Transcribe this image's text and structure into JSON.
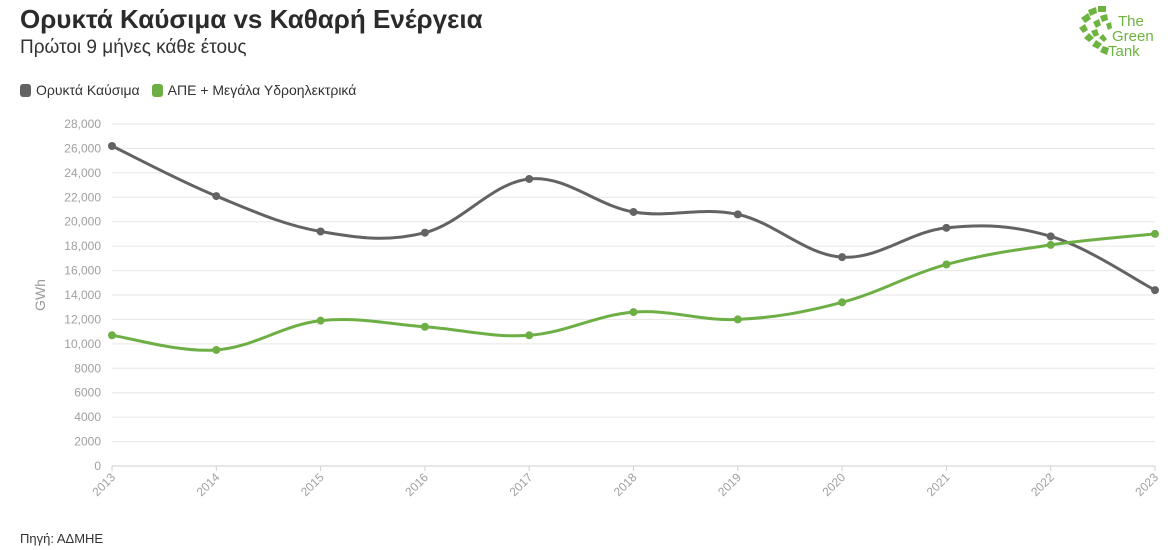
{
  "header": {
    "title": "Ορυκτά Καύσιμα vs Καθαρή Ενέργεια",
    "subtitle": "Πρώτοι 9 μήνες κάθε έτους"
  },
  "logo": {
    "line1": "The",
    "line2": "Green",
    "line3": "Tank",
    "color": "#6db33f"
  },
  "footer": {
    "source": "Πηγή: ΑΔΜΗΕ"
  },
  "chart_data": {
    "type": "line",
    "title": "Ορυκτά Καύσιμα vs Καθαρή Ενέργεια",
    "subtitle": "Πρώτοι 9 μήνες κάθε έτους",
    "xlabel": "",
    "ylabel": "GWh",
    "x": [
      "2013",
      "2014",
      "2015",
      "2016",
      "2017",
      "2018",
      "2019",
      "2020",
      "2021",
      "2022",
      "2023"
    ],
    "ylim": [
      0,
      28000
    ],
    "yticks": [
      "0",
      "2000",
      "4000",
      "6000",
      "8000",
      "10,000",
      "12,000",
      "14,000",
      "16,000",
      "18,000",
      "20,000",
      "22,000",
      "24,000",
      "26,000",
      "28,000"
    ],
    "grid": true,
    "legend_position": "top-left",
    "series": [
      {
        "name": "Ορυκτά Καύσιμα",
        "color": "#636363",
        "values": [
          26200,
          22100,
          19200,
          19100,
          23500,
          20800,
          20600,
          17100,
          19500,
          18800,
          14400
        ]
      },
      {
        "name": "ΑΠΕ + Μεγάλα Υδροηλεκτρικά",
        "color": "#6eaf45",
        "values": [
          10700,
          9500,
          11900,
          11400,
          10700,
          12600,
          12000,
          13400,
          16500,
          18100,
          19000
        ]
      }
    ]
  }
}
